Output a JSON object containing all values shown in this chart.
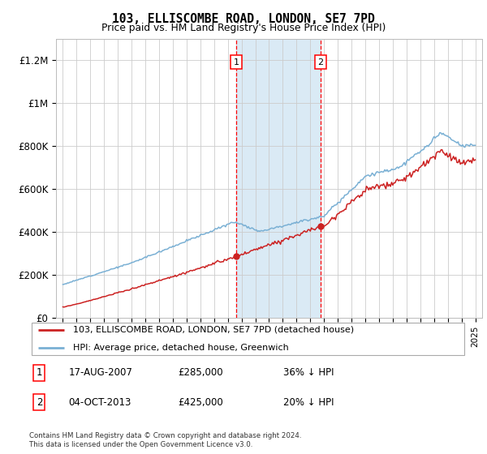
{
  "title": "103, ELLISCOMBE ROAD, LONDON, SE7 7PD",
  "subtitle": "Price paid vs. HM Land Registry's House Price Index (HPI)",
  "hpi_color": "#7ab0d4",
  "price_color": "#cc2222",
  "highlight_color": "#daeaf5",
  "purchase1_x": 2007.622,
  "purchase1_y": 285000,
  "purchase2_x": 2013.75,
  "purchase2_y": 425000,
  "legend1": "103, ELLISCOMBE ROAD, LONDON, SE7 7PD (detached house)",
  "legend2": "HPI: Average price, detached house, Greenwich",
  "table_row1": [
    "1",
    "17-AUG-2007",
    "£285,000",
    "36% ↓ HPI"
  ],
  "table_row2": [
    "2",
    "04-OCT-2013",
    "£425,000",
    "20% ↓ HPI"
  ],
  "footnote": "Contains HM Land Registry data © Crown copyright and database right 2024.\nThis data is licensed under the Open Government Licence v3.0.",
  "ylim": [
    0,
    1300000
  ],
  "yticks": [
    0,
    200000,
    400000,
    600000,
    800000,
    1000000,
    1200000
  ],
  "ytick_labels": [
    "£0",
    "£200K",
    "£400K",
    "£600K",
    "£800K",
    "£1M",
    "£1.2M"
  ],
  "xlim_left": 1994.5,
  "xlim_right": 2025.5
}
